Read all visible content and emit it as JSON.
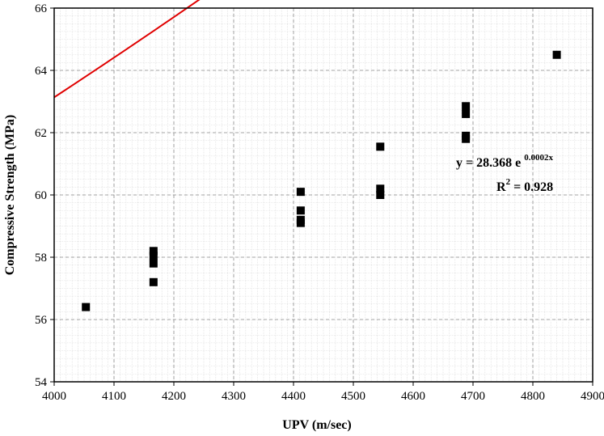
{
  "chart_data": {
    "type": "scatter",
    "title": "",
    "xlabel": "UPV (m/sec)",
    "ylabel": "Compressive Strength (MPa)",
    "xlim": [
      4000,
      4900
    ],
    "ylim": [
      54,
      66
    ],
    "x_ticks": [
      "4000",
      "4100",
      "4200",
      "4300",
      "4400",
      "4500",
      "4600",
      "4700",
      "4800",
      "4900"
    ],
    "y_ticks": [
      "54",
      "56",
      "58",
      "60",
      "62",
      "64",
      "66"
    ],
    "grid": true,
    "minor_grid": true,
    "series": [
      {
        "marker": "square",
        "color": "#000000",
        "points": [
          {
            "x": 4053,
            "y": 56.4
          },
          {
            "x": 4166,
            "y": 57.2
          },
          {
            "x": 4166,
            "y": 57.8
          },
          {
            "x": 4166,
            "y": 58.05
          },
          {
            "x": 4166,
            "y": 58.2
          },
          {
            "x": 4412,
            "y": 59.1
          },
          {
            "x": 4412,
            "y": 59.2
          },
          {
            "x": 4412,
            "y": 59.5
          },
          {
            "x": 4412,
            "y": 60.1
          },
          {
            "x": 4545,
            "y": 60.0
          },
          {
            "x": 4545,
            "y": 60.2
          },
          {
            "x": 4545,
            "y": 61.55
          },
          {
            "x": 4688,
            "y": 61.8
          },
          {
            "x": 4688,
            "y": 61.9
          },
          {
            "x": 4688,
            "y": 62.6
          },
          {
            "x": 4688,
            "y": 62.85
          },
          {
            "x": 4840,
            "y": 64.5
          }
        ]
      }
    ],
    "trendline": {
      "type": "exponential",
      "a": 28.368,
      "b": 0.0002,
      "color": "#e00000",
      "x_range": [
        4000,
        4840
      ]
    },
    "annotations": {
      "equation_main": "y = 28.368 e",
      "equation_exp": "0.0002x",
      "r2_prefix": "R",
      "r2_sup": "2",
      "r2_value": " = 0.928"
    }
  }
}
